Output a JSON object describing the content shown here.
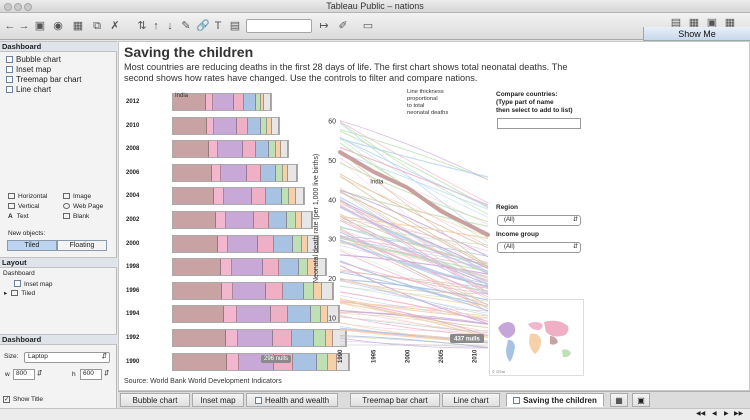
{
  "window": {
    "title": "Tableau Public – nations"
  },
  "toolbar": {
    "show_me_label": "Show Me"
  },
  "sidebar": {
    "dashboard_header": "Dashboard",
    "sheets": [
      {
        "label": "Bubble chart"
      },
      {
        "label": "Inset map"
      },
      {
        "label": "Treemap bar chart"
      },
      {
        "label": "Line chart"
      }
    ],
    "objects": [
      {
        "label": "Horizontal"
      },
      {
        "label": "Image"
      },
      {
        "label": "Vertical"
      },
      {
        "label": "Web Page"
      },
      {
        "label": "Text"
      },
      {
        "label": "Blank"
      }
    ],
    "new_objects_label": "New objects:",
    "tiled_label": "Tiled",
    "floating_label": "Floating",
    "layout_header": "Layout",
    "layout_root": "Dashboard",
    "layout_items": [
      {
        "label": "Inset map"
      },
      {
        "label": "Tiled"
      }
    ],
    "dashboard2_header": "Dashboard",
    "size_label": "Size:",
    "size_value": "Laptop",
    "w_label": "w",
    "w_value": "800",
    "h_label": "h",
    "h_value": "600",
    "show_title_label": "Show Title"
  },
  "dashboard": {
    "title": "Saving the children",
    "subtitle": "Most countries are reducing deaths in the first 28 days of life. The first chart shows total neonatal deaths. The second shows how rates have changed. Use the controls to filter and compare nations.",
    "source": "Source: World Bank World Development Indicators"
  },
  "treemap": {
    "india_label": "India",
    "nulls_label": "296 nulls",
    "colors": [
      "#c9a3a3",
      "#f2b6cf",
      "#c7a8d6",
      "#efb0c5",
      "#a7c2e2",
      "#bfe0b5",
      "#f5d0a8",
      "#e6e6e6"
    ],
    "rows": [
      {
        "year": "2012",
        "widths": [
          26,
          6,
          17,
          8,
          9,
          4,
          3,
          5
        ]
      },
      {
        "year": "2010",
        "widths": [
          27,
          6,
          18,
          9,
          10,
          5,
          4,
          6
        ]
      },
      {
        "year": "2008",
        "widths": [
          29,
          7,
          20,
          10,
          11,
          5,
          4,
          6
        ]
      },
      {
        "year": "2006",
        "widths": [
          31,
          7,
          21,
          11,
          12,
          6,
          4,
          7
        ]
      },
      {
        "year": "2004",
        "widths": [
          33,
          8,
          22,
          11,
          13,
          6,
          5,
          7
        ]
      },
      {
        "year": "2002",
        "widths": [
          34,
          8,
          23,
          12,
          14,
          7,
          5,
          8
        ]
      },
      {
        "year": "2000",
        "widths": [
          36,
          8,
          24,
          13,
          15,
          7,
          5,
          8
        ]
      },
      {
        "year": "1998",
        "widths": [
          38,
          9,
          25,
          13,
          16,
          7,
          6,
          8
        ]
      },
      {
        "year": "1996",
        "widths": [
          39,
          9,
          26,
          14,
          17,
          8,
          6,
          9
        ]
      },
      {
        "year": "1994",
        "widths": [
          41,
          10,
          27,
          14,
          18,
          8,
          6,
          9
        ]
      },
      {
        "year": "1992",
        "widths": [
          42,
          10,
          28,
          15,
          18,
          9,
          6,
          10
        ]
      },
      {
        "year": "1990",
        "widths": [
          43,
          10,
          28,
          15,
          19,
          9,
          7,
          10
        ]
      }
    ]
  },
  "chart_data": {
    "type": "line",
    "title": "",
    "ylabel": "Neonatal death rate (per 1,000 live births)",
    "xlabel": "",
    "x_ticks": [
      "1990",
      "1995",
      "2000",
      "2005",
      "2010"
    ],
    "y_ticks": [
      10,
      20,
      30,
      40,
      50,
      60
    ],
    "xlim": [
      1990,
      2012
    ],
    "ylim": [
      3,
      65
    ],
    "annotation": "Line thickness proportional to total neonatal deaths",
    "highlight": {
      "name": "India",
      "x": [
        1990,
        1995,
        2000,
        2005,
        2012
      ],
      "y": [
        52,
        47,
        43,
        37,
        31
      ],
      "color": "#c8a0a0"
    },
    "nulls_label": "437 nulls",
    "line_colors": [
      "#f2b6cf",
      "#c7a8d6",
      "#a7c2e2",
      "#bfe0b5",
      "#f5d0a8",
      "#efb0c5",
      "#d8c2a6",
      "#b9d6ef"
    ]
  },
  "controls": {
    "compare_label": "Compare countries:\n(Type part of name\nthen select to add to list)",
    "region_label": "Region",
    "region_value": "(All)",
    "income_label": "Income group",
    "income_value": "(All)"
  },
  "map": {
    "credit": "© OSm"
  },
  "tabs": [
    {
      "label": "Bubble chart"
    },
    {
      "label": "Inset map"
    },
    {
      "label": "Health and wealth"
    },
    {
      "label": "Treemap bar chart"
    },
    {
      "label": "Line chart"
    },
    {
      "label": "Saving the children"
    }
  ]
}
